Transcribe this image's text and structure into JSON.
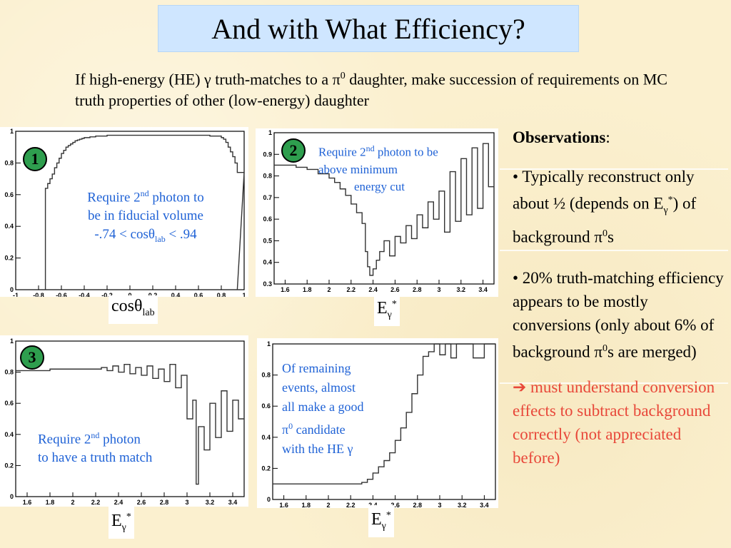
{
  "title": "And with What Efficiency?",
  "intro": {
    "part1": "If high-energy (HE) ",
    "gamma": "γ",
    "part2": " truth-matches to a ",
    "pi": "π",
    "sup0": "0",
    "part3": " daughter, make succession of requirements on MC truth properties of other (low-energy) daughter"
  },
  "observations": {
    "heading": "Observations",
    "colon": ":",
    "b1_a": "• Typically reconstruct only about ½ (depends on E",
    "b1_sub": "γ",
    "b1_sup": "*",
    "b1_b": ") of background π",
    "b1_sup0": "0",
    "b1_c": "s",
    "b2_a": "• 20% truth-matching efficiency appears to be mostly conversions (only about 6% of background π",
    "b2_sup0": "0",
    "b2_b": "s are merged)",
    "b3_arrow": "➔",
    "b3_text": " must understand conversion effects to subtract background correctly (not appreciated before)"
  },
  "colors": {
    "accent_blue": "#1f62d6",
    "warning_red": "#e8483a",
    "badge_green": "#2e9e4e",
    "title_bg": "#cfe6ff"
  },
  "panels": {
    "p1": {
      "badge": "1",
      "xlabel_main": "cosθ",
      "xlabel_sub": "lab",
      "annot_l1_a": "Require 2",
      "annot_l1_sup": "nd",
      "annot_l1_b": " photon to",
      "annot_l2": "be in fiducial volume",
      "annot_l3_a": "-.74 < cosθ",
      "annot_l3_sub": "lab",
      "annot_l3_b": " < .94"
    },
    "p2": {
      "badge": "2",
      "xlabel_main": "E",
      "xlabel_sub": "γ",
      "xlabel_sup": "*",
      "annot_l1_a": "Require 2",
      "annot_l1_sup": "nd",
      "annot_l1_b": " photon to be",
      "annot_l2": "above minimum",
      "annot_l3": "energy cut"
    },
    "p3": {
      "badge": "3",
      "xlabel_main": "E",
      "xlabel_sub": "γ",
      "xlabel_sup": "*",
      "annot_l1_a": "Require 2",
      "annot_l1_sup": "nd",
      "annot_l1_b": " photon",
      "annot_l2": "to have a truth match"
    },
    "p4": {
      "xlabel_main": "E",
      "xlabel_sub": "γ",
      "xlabel_sup": "*",
      "annot_l1": "Of remaining",
      "annot_l2": "events, almost",
      "annot_l3": "all make a good",
      "annot_l4_a": "π",
      "annot_l4_sup": "0",
      "annot_l4_b": " candidate",
      "annot_l5_a": "with the HE ",
      "annot_l5_b": "γ"
    }
  },
  "chart_data": [
    {
      "type": "line",
      "xlim": [
        -1,
        1
      ],
      "ylim": [
        0,
        1.0
      ],
      "xticks": [
        "-1",
        "-0.8",
        "-0.6",
        "-0.4",
        "-0.2",
        "0",
        "0.2",
        "0.4",
        "0.6",
        "0.8",
        "1"
      ],
      "yticks": [
        "0",
        "0.2",
        "0.4",
        "0.6",
        "0.8",
        "1"
      ],
      "x": [
        -0.74,
        -0.72,
        -0.7,
        -0.68,
        -0.66,
        -0.64,
        -0.62,
        -0.6,
        -0.58,
        -0.56,
        -0.54,
        -0.52,
        -0.5,
        -0.48,
        -0.46,
        -0.44,
        -0.42,
        -0.4,
        -0.35,
        -0.3,
        -0.25,
        -0.2,
        -0.1,
        0,
        0.1,
        0.2,
        0.3,
        0.4,
        0.5,
        0.6,
        0.7,
        0.76,
        0.8,
        0.82,
        0.84,
        0.86,
        0.88,
        0.9,
        0.92,
        0.94
      ],
      "y": [
        0.64,
        0.67,
        0.7,
        0.73,
        0.77,
        0.8,
        0.83,
        0.86,
        0.88,
        0.9,
        0.91,
        0.92,
        0.93,
        0.94,
        0.945,
        0.95,
        0.955,
        0.96,
        0.965,
        0.97,
        0.97,
        0.975,
        0.975,
        0.975,
        0.975,
        0.975,
        0.975,
        0.975,
        0.975,
        0.975,
        0.97,
        0.97,
        0.96,
        0.95,
        0.93,
        0.9,
        0.87,
        0.84,
        0.8,
        0.74
      ]
    },
    {
      "type": "line",
      "xlim": [
        1.5,
        3.5
      ],
      "ylim": [
        0.3,
        1.0
      ],
      "xticks": [
        "1.6",
        "1.8",
        "2",
        "2.2",
        "2.4",
        "2.6",
        "2.8",
        "3",
        "3.2",
        "3.4"
      ],
      "yticks": [
        "0.3",
        "0.4",
        "0.5",
        "0.6",
        "0.7",
        "0.8",
        "0.9",
        "1"
      ],
      "x": [
        1.5,
        1.6,
        1.7,
        1.8,
        1.9,
        2.0,
        2.05,
        2.1,
        2.15,
        2.2,
        2.25,
        2.3,
        2.33,
        2.35,
        2.37,
        2.4,
        2.43,
        2.46,
        2.5,
        2.55,
        2.6,
        2.65,
        2.7,
        2.75,
        2.8,
        2.85,
        2.9,
        2.95,
        3.0,
        3.05,
        3.1,
        3.15,
        3.2,
        3.25,
        3.3,
        3.35,
        3.4,
        3.45
      ],
      "y": [
        0.85,
        0.85,
        0.84,
        0.83,
        0.81,
        0.79,
        0.77,
        0.74,
        0.71,
        0.67,
        0.63,
        0.58,
        0.45,
        0.38,
        0.34,
        0.37,
        0.41,
        0.45,
        0.5,
        0.43,
        0.52,
        0.49,
        0.57,
        0.51,
        0.62,
        0.56,
        0.68,
        0.6,
        0.73,
        0.54,
        0.82,
        0.59,
        0.88,
        0.62,
        0.93,
        0.65,
        0.95,
        0.75
      ]
    },
    {
      "type": "line",
      "xlim": [
        1.5,
        3.5
      ],
      "ylim": [
        0,
        1.0
      ],
      "xticks": [
        "1.6",
        "1.8",
        "2",
        "2.2",
        "2.4",
        "2.6",
        "2.8",
        "3",
        "3.2",
        "3.4"
      ],
      "yticks": [
        "0",
        "0.2",
        "0.4",
        "0.6",
        "0.8",
        "1"
      ],
      "x": [
        1.5,
        1.6,
        1.7,
        1.8,
        1.9,
        2.0,
        2.1,
        2.2,
        2.25,
        2.3,
        2.35,
        2.4,
        2.45,
        2.5,
        2.55,
        2.6,
        2.65,
        2.7,
        2.75,
        2.8,
        2.85,
        2.9,
        2.95,
        3.0,
        3.05,
        3.08,
        3.1,
        3.15,
        3.2,
        3.25,
        3.3,
        3.35,
        3.4,
        3.45
      ],
      "y": [
        0.81,
        0.81,
        0.81,
        0.82,
        0.82,
        0.82,
        0.82,
        0.82,
        0.83,
        0.81,
        0.84,
        0.8,
        0.85,
        0.79,
        0.83,
        0.78,
        0.84,
        0.76,
        0.82,
        0.74,
        0.85,
        0.7,
        0.78,
        0.5,
        0.62,
        0.08,
        0.45,
        0.3,
        0.6,
        0.38,
        0.68,
        0.42,
        0.62,
        0.5
      ]
    },
    {
      "type": "line",
      "xlim": [
        1.5,
        3.5
      ],
      "ylim": [
        0,
        1.0
      ],
      "xticks": [
        "1.6",
        "1.8",
        "2",
        "2.2",
        "2.4",
        "2.6",
        "2.8",
        "3",
        "3.2",
        "3.4"
      ],
      "yticks": [
        "0",
        "0.2",
        "0.4",
        "0.6",
        "0.8",
        "1"
      ],
      "x": [
        1.5,
        1.6,
        1.8,
        2.0,
        2.2,
        2.3,
        2.35,
        2.4,
        2.45,
        2.5,
        2.55,
        2.6,
        2.65,
        2.7,
        2.75,
        2.8,
        2.85,
        2.9,
        2.95,
        3.0,
        3.05,
        3.1,
        3.15,
        3.2,
        3.3,
        3.4,
        3.45
      ],
      "y": [
        0.1,
        0.1,
        0.1,
        0.1,
        0.1,
        0.11,
        0.13,
        0.17,
        0.21,
        0.25,
        0.3,
        0.38,
        0.46,
        0.56,
        0.68,
        0.8,
        0.92,
        0.95,
        1.0,
        0.93,
        1.0,
        0.91,
        1.0,
        1.0,
        0.91,
        1.0,
        1.0
      ]
    }
  ]
}
